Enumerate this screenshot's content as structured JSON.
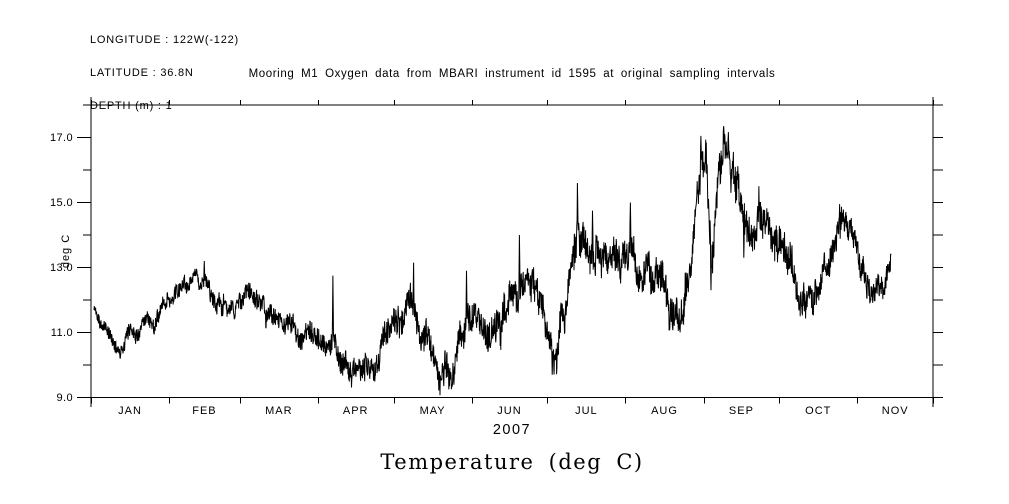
{
  "page": {
    "background": "#ffffff",
    "foreground": "#000000"
  },
  "header_info": {
    "longitude_label": "LONGITUDE : 122W(-122)",
    "latitude_label": "LATITUDE : 36.8N",
    "depth_label": "DEPTH (m) : 1"
  },
  "chart_data": {
    "type": "line",
    "title": "Mooring M1 Oxygen data from MBARI instrument id 1595 at original sampling intervals",
    "ylabel": "deg C",
    "x_axis_year_label": "2007",
    "bottom_caption": "Temperature (deg C)",
    "grid": false,
    "line_color": "#000000",
    "background_color": "#ffffff",
    "ylim": [
      9.0,
      18.0
    ],
    "y_major_ticks": [
      9.0,
      11.0,
      13.0,
      15.0,
      17.0
    ],
    "y_major_tick_labels": [
      "9.0",
      "11.0",
      "13.0",
      "15.0",
      "17.0"
    ],
    "y_minor_ticks": [
      10.0,
      12.0,
      14.0,
      16.0,
      18.0
    ],
    "x_range_days": [
      0,
      334
    ],
    "x_month_tick_days": [
      0,
      31,
      59,
      90,
      120,
      151,
      181,
      212,
      243,
      273,
      304,
      334
    ],
    "x_tick_labels": [
      "JAN",
      "FEB",
      "MAR",
      "APR",
      "MAY",
      "JUN",
      "JUL",
      "AUG",
      "SEP",
      "OCT",
      "NOV"
    ],
    "series": [
      {
        "name": "temperature_degC",
        "color": "#000000",
        "sampling": "high-frequency (sub-daily), noisy",
        "samples_per_day": 8,
        "data_start_day": 1.2,
        "data_end_day": 317.4,
        "trend_anchors_day_degC": [
          [
            1.2,
            11.7
          ],
          [
            3.6,
            11.45
          ],
          [
            6.7,
            11.0
          ],
          [
            9.5,
            10.6
          ],
          [
            13.1,
            10.45
          ],
          [
            15.5,
            11.15
          ],
          [
            19.4,
            11.05
          ],
          [
            22.6,
            11.45
          ],
          [
            25.4,
            11.3
          ],
          [
            28.6,
            11.85
          ],
          [
            32.1,
            12.05
          ],
          [
            35.3,
            12.25
          ],
          [
            39.3,
            12.4
          ],
          [
            43.2,
            12.55
          ],
          [
            47.2,
            12.3
          ],
          [
            51.2,
            12.0
          ],
          [
            55.1,
            11.75
          ],
          [
            59.1,
            11.9
          ],
          [
            63.1,
            12.15
          ],
          [
            66.3,
            11.9
          ],
          [
            69.0,
            11.45
          ],
          [
            71.8,
            11.6
          ],
          [
            75.0,
            11.5
          ],
          [
            78.9,
            11.2
          ],
          [
            82.9,
            11.05
          ],
          [
            86.9,
            10.9
          ],
          [
            90.1,
            10.8
          ],
          [
            93.2,
            10.6
          ],
          [
            96.4,
            10.85
          ],
          [
            99.6,
            10.2
          ],
          [
            102.7,
            9.9
          ],
          [
            105.9,
            9.7
          ],
          [
            108.7,
            9.75
          ],
          [
            111.5,
            10.0
          ],
          [
            114.6,
            10.55
          ],
          [
            117.8,
            11.3
          ],
          [
            121.0,
            11.55
          ],
          [
            124.2,
            11.35
          ],
          [
            127.7,
            11.95
          ],
          [
            130.5,
            11.2
          ],
          [
            133.7,
            10.5
          ],
          [
            136.8,
            10.0
          ],
          [
            140.0,
            9.65
          ],
          [
            143.2,
            10.0
          ],
          [
            146.4,
            10.9
          ],
          [
            149.2,
            11.75
          ],
          [
            152.3,
            11.5
          ],
          [
            155.5,
            11.0
          ],
          [
            158.3,
            10.9
          ],
          [
            161.0,
            11.3
          ],
          [
            164.2,
            11.75
          ],
          [
            167.4,
            12.0
          ],
          [
            170.2,
            12.2
          ],
          [
            173.4,
            12.4
          ],
          [
            176.1,
            12.15
          ],
          [
            178.9,
            11.6
          ],
          [
            181.3,
            10.8
          ],
          [
            183.3,
            10.0
          ],
          [
            185.2,
            10.6
          ],
          [
            187.2,
            11.6
          ],
          [
            189.2,
            12.6
          ],
          [
            191.2,
            13.5
          ],
          [
            193.2,
            14.2
          ],
          [
            196.0,
            13.5
          ],
          [
            199.1,
            13.6
          ],
          [
            201.9,
            13.4
          ],
          [
            205.1,
            13.2
          ],
          [
            207.9,
            13.4
          ],
          [
            210.6,
            13.3
          ],
          [
            213.8,
            13.55
          ],
          [
            217.0,
            13.1
          ],
          [
            219.8,
            12.9
          ],
          [
            222.5,
            12.7
          ],
          [
            225.7,
            12.6
          ],
          [
            228.9,
            12.0
          ],
          [
            231.3,
            11.5
          ],
          [
            233.6,
            11.4
          ],
          [
            236.0,
            12.3
          ],
          [
            238.4,
            13.8
          ],
          [
            240.4,
            15.2
          ],
          [
            242.4,
            16.3
          ],
          [
            244.3,
            15.9
          ],
          [
            245.9,
            13.6
          ],
          [
            247.5,
            14.3
          ],
          [
            249.5,
            16.1
          ],
          [
            251.1,
            16.5
          ],
          [
            252.7,
            16.2
          ],
          [
            254.7,
            15.8
          ],
          [
            256.6,
            15.3
          ],
          [
            258.6,
            14.3
          ],
          [
            260.6,
            14.0
          ],
          [
            262.6,
            13.7
          ],
          [
            264.6,
            14.3
          ],
          [
            267.0,
            14.2
          ],
          [
            269.3,
            14.0
          ],
          [
            271.7,
            13.9
          ],
          [
            274.1,
            13.6
          ],
          [
            276.5,
            13.0
          ],
          [
            278.9,
            12.4
          ],
          [
            281.2,
            12.1
          ],
          [
            283.6,
            12.0
          ],
          [
            286.0,
            12.3
          ],
          [
            288.4,
            12.6
          ],
          [
            290.8,
            12.9
          ],
          [
            293.2,
            13.3
          ],
          [
            295.5,
            14.1
          ],
          [
            297.1,
            14.5
          ],
          [
            299.1,
            14.1
          ],
          [
            301.1,
            13.8
          ],
          [
            303.1,
            13.4
          ],
          [
            305.0,
            12.9
          ],
          [
            307.0,
            12.5
          ],
          [
            309.0,
            12.4
          ],
          [
            311.4,
            12.5
          ],
          [
            313.8,
            12.4
          ],
          [
            315.8,
            12.8
          ],
          [
            317.3,
            13.35
          ]
        ],
        "noise_amplitude_anchors_day_degC": [
          [
            0,
            0.18
          ],
          [
            30,
            0.22
          ],
          [
            55,
            0.25
          ],
          [
            90,
            0.3
          ],
          [
            120,
            0.38
          ],
          [
            150,
            0.42
          ],
          [
            170,
            0.45
          ],
          [
            185,
            0.5
          ],
          [
            200,
            0.5
          ],
          [
            215,
            0.45
          ],
          [
            230,
            0.5
          ],
          [
            245,
            0.55
          ],
          [
            260,
            0.5
          ],
          [
            275,
            0.45
          ],
          [
            290,
            0.4
          ],
          [
            305,
            0.35
          ],
          [
            318,
            0.3
          ]
        ],
        "extreme_spikes_day_degC": [
          [
            45,
            13.2
          ],
          [
            96,
            12.75
          ],
          [
            128,
            13.15
          ],
          [
            140,
            9.35
          ],
          [
            149,
            12.9
          ],
          [
            170,
            14.0
          ],
          [
            183,
            9.7
          ],
          [
            193,
            15.6
          ],
          [
            199,
            14.75
          ],
          [
            214,
            15.0
          ],
          [
            233,
            11.05
          ],
          [
            242,
            17.05
          ],
          [
            246,
            12.3
          ],
          [
            251,
            17.35
          ],
          [
            259,
            13.3
          ],
          [
            265,
            15.5
          ],
          [
            281,
            11.8
          ],
          [
            297,
            14.95
          ],
          [
            309,
            11.9
          ]
        ]
      }
    ]
  }
}
